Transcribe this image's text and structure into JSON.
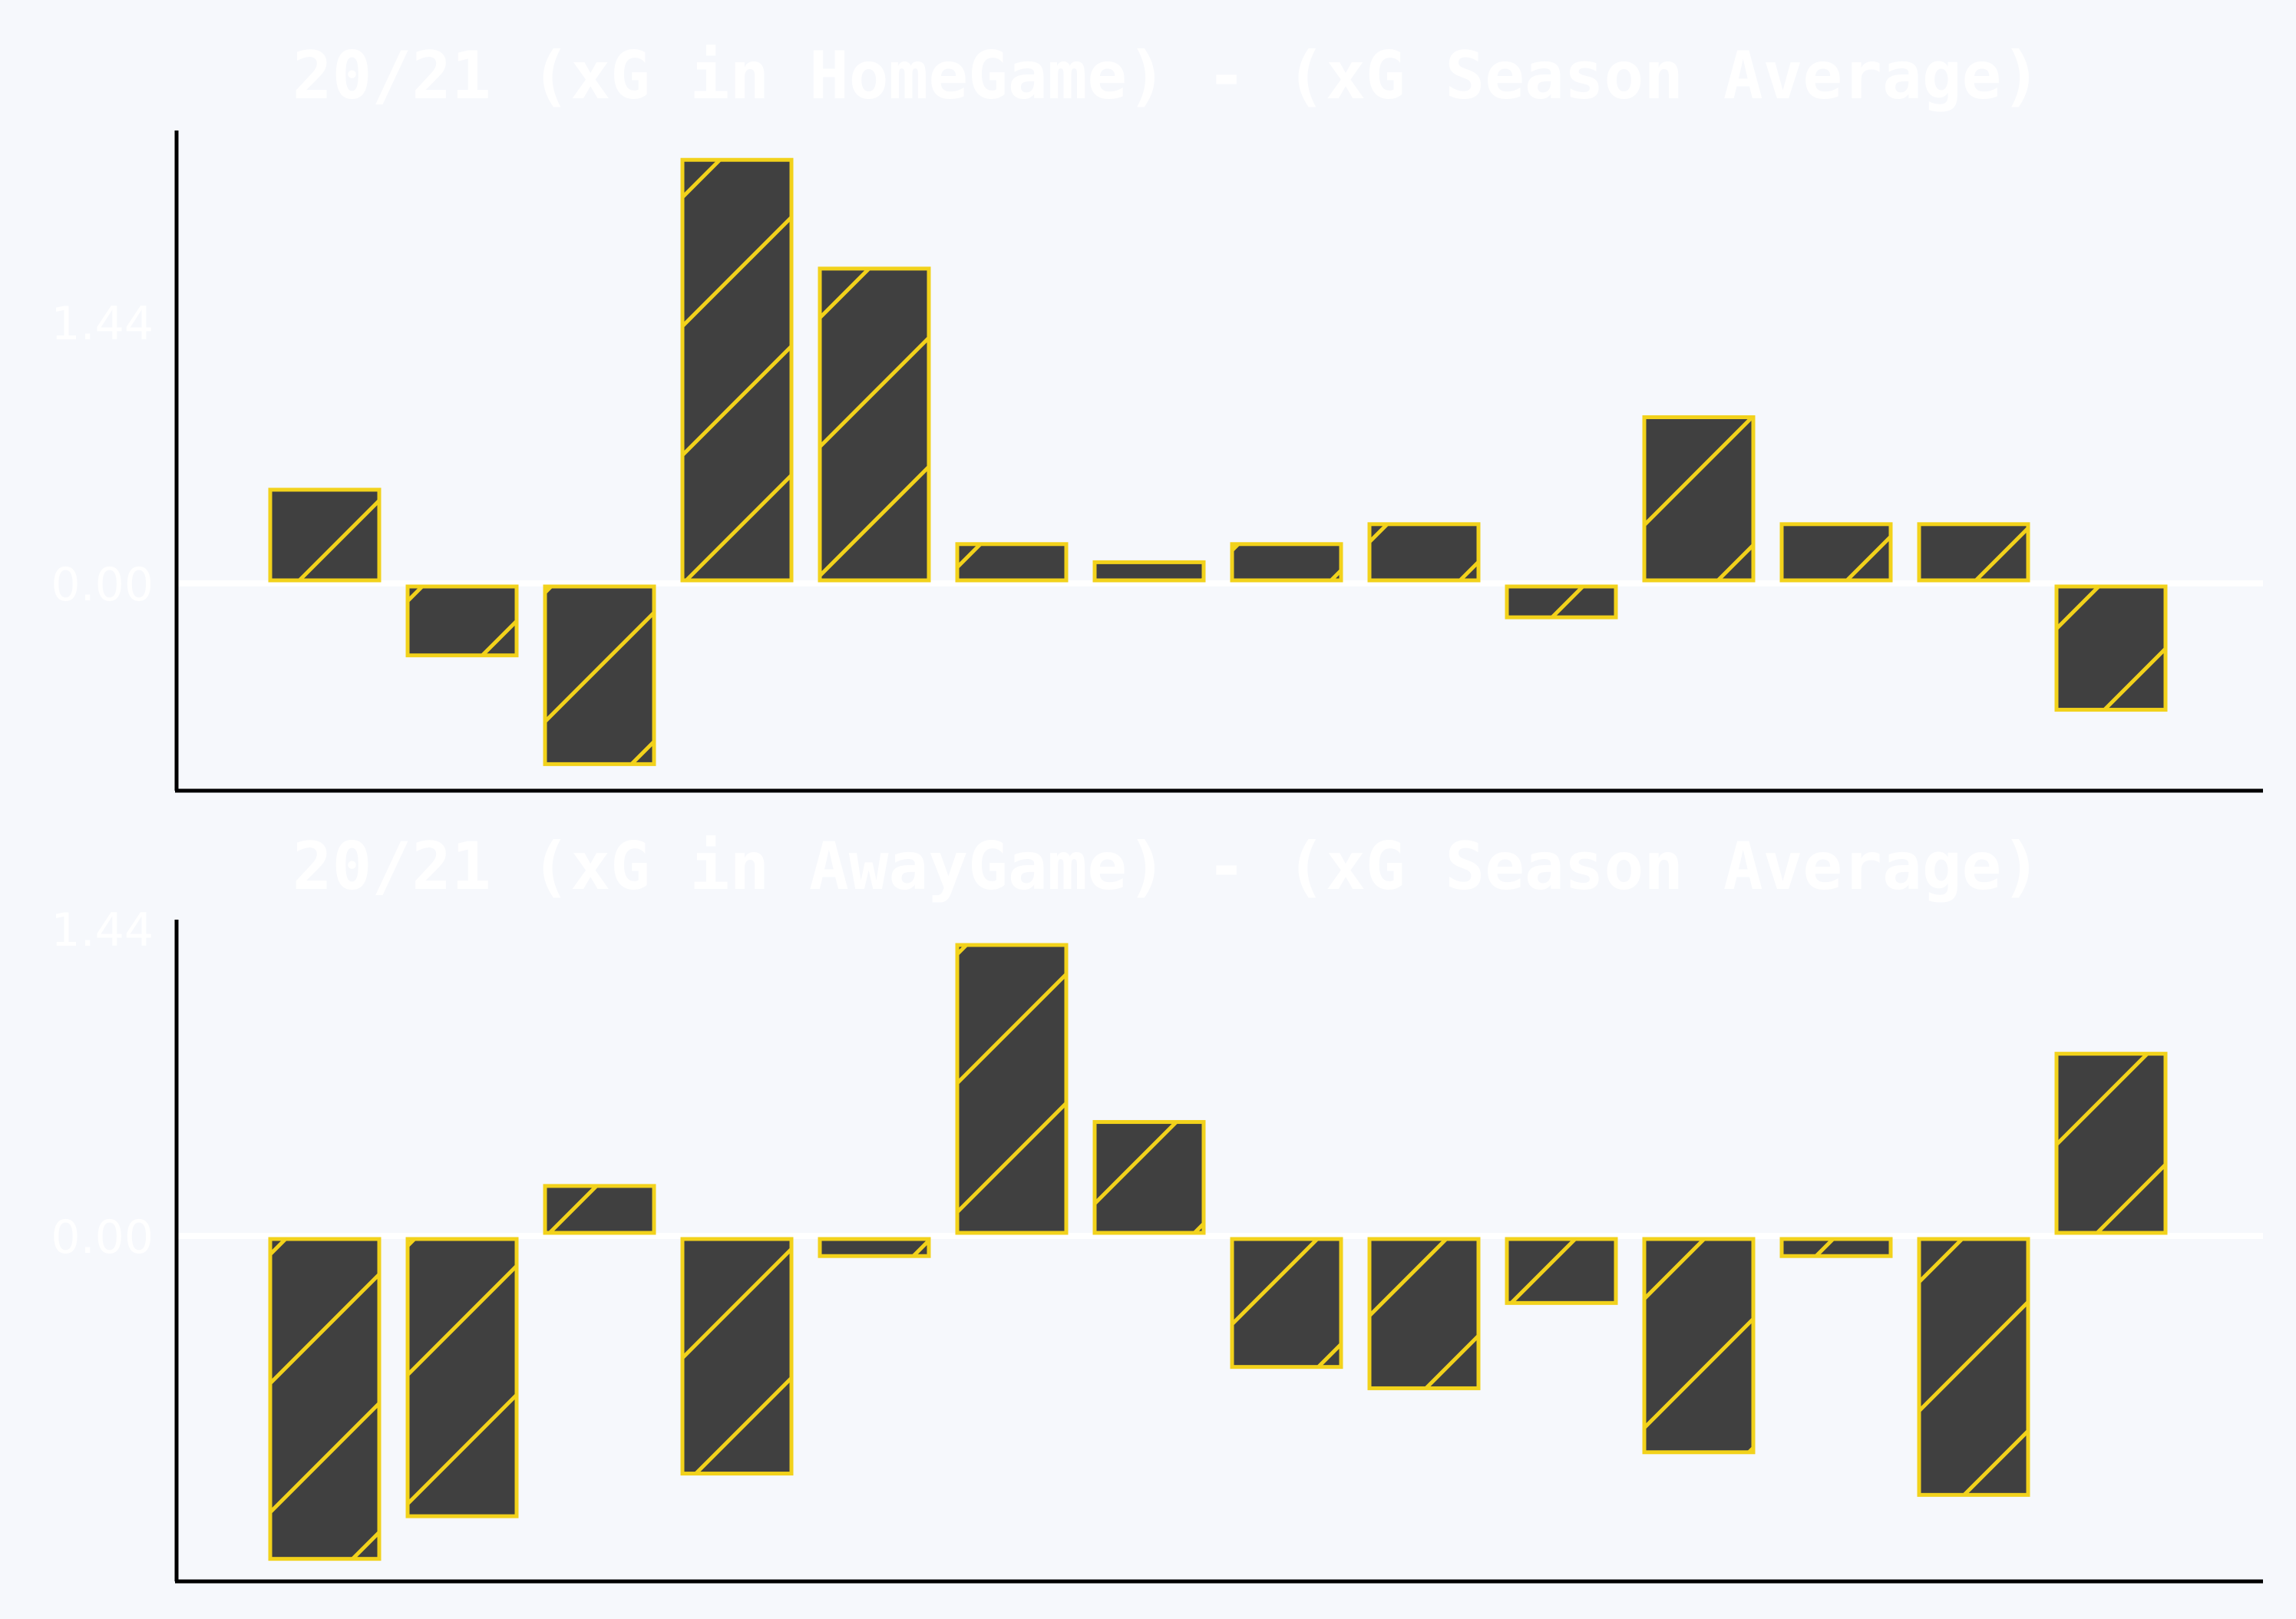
{
  "colors": {
    "background": "#f6f8fc",
    "bar_fill": "#404040",
    "bar_edge": "#f2d21b",
    "text": "#ffffff",
    "axis": "#000000",
    "zero_line": "#ffffff"
  },
  "chart_data": [
    {
      "type": "bar",
      "title": "20/21 (xG in HomeGame) - (xG Season Average)",
      "xlabel": "",
      "ylabel": "",
      "yticks": [
        0.0,
        1.44
      ],
      "ytick_labels": [
        "0.00",
        "1.44"
      ],
      "ylim": [
        -1.12,
        2.5
      ],
      "values": [
        0.5,
        -0.38,
        -0.98,
        2.32,
        1.72,
        0.2,
        0.1,
        0.2,
        0.31,
        -0.17,
        0.9,
        0.31,
        0.31,
        -0.68
      ],
      "hatch": "/",
      "grid": false,
      "legend": "none"
    },
    {
      "type": "bar",
      "title": "20/21 (xG in AwayGame) - (xG Season Average)",
      "xlabel": "",
      "ylabel": "",
      "yticks": [
        0.0,
        1.44
      ],
      "ytick_labels": [
        "0.00",
        "1.44"
      ],
      "ylim": [
        -1.65,
        1.47
      ],
      "values": [
        -1.5,
        -1.3,
        0.22,
        -1.1,
        -0.08,
        1.35,
        0.52,
        -0.6,
        -0.7,
        -0.3,
        -1.0,
        -0.08,
        -1.2,
        0.84
      ],
      "hatch": "/",
      "grid": false,
      "legend": "none"
    }
  ]
}
